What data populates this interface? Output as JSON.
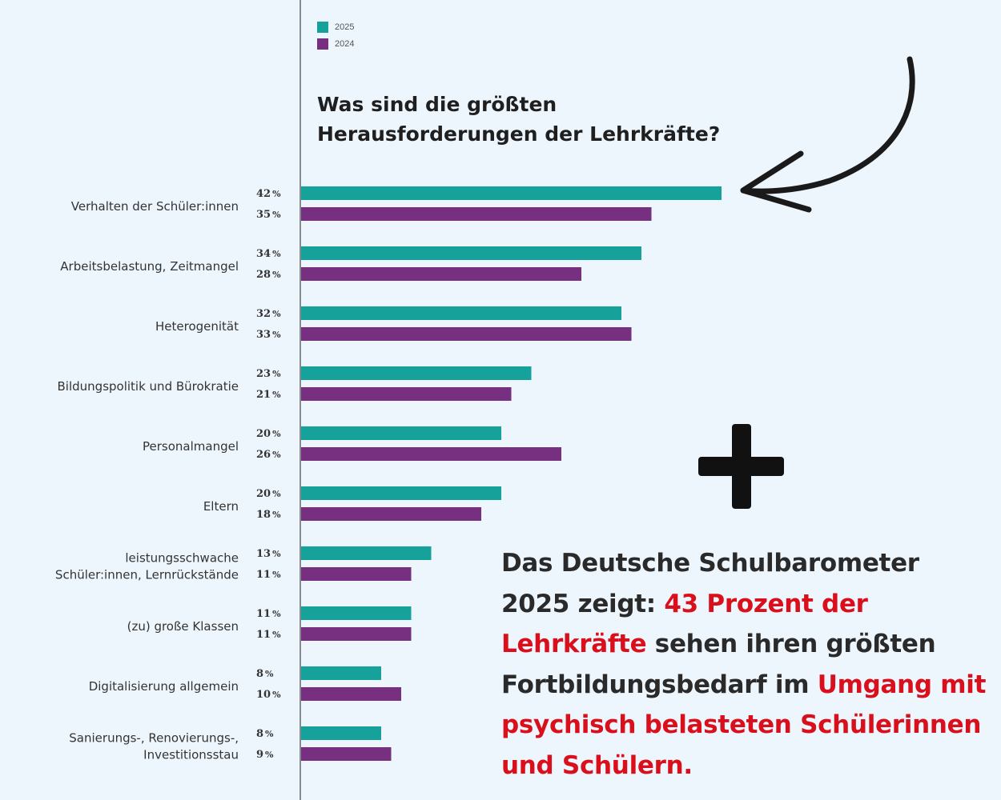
{
  "chart_data": {
    "type": "bar",
    "orientation": "horizontal",
    "title": "Was sind die größten Herausforderungen der Lehrkräfte?",
    "legend": {
      "position": "top-left",
      "entries": [
        "2025",
        "2024"
      ]
    },
    "colors": {
      "2025": "#16a19a",
      "2024": "#76307f"
    },
    "categories": [
      "Verhalten der Schüler:innen",
      "Arbeitsbelastung, Zeitmangel",
      "Heterogenität",
      "Bildungspolitik und Bürokratie",
      "Personalmangel",
      "Eltern",
      "leistungsschwache\nSchüler:innen, Lernrückstände",
      "(zu) große Klassen",
      "Digitalisierung allgemein",
      "Sanierungs-, Renovierungs-,\nInvestitionsstau"
    ],
    "series": [
      {
        "name": "2025",
        "values": [
          42,
          34,
          32,
          23,
          20,
          20,
          13,
          11,
          8,
          8
        ]
      },
      {
        "name": "2024",
        "values": [
          35,
          28,
          33,
          21,
          26,
          18,
          11,
          11,
          10,
          9
        ]
      }
    ],
    "value_suffix": "%",
    "xlim": [
      0,
      42
    ]
  },
  "callout": {
    "p1": "Das Deutsche Schulbarometer 2025 zeigt: ",
    "h1": "43 Prozent der Lehrkräfte",
    "p2": " sehen ihren größten Fortbildungsbedarf im ",
    "h2": "Umgang mit psychisch belasteten Schülerinnen und Schülern."
  },
  "decorations": {
    "plus_icon": "plus-sign",
    "arrow_icon": "curved-arrow-pointing-left"
  }
}
